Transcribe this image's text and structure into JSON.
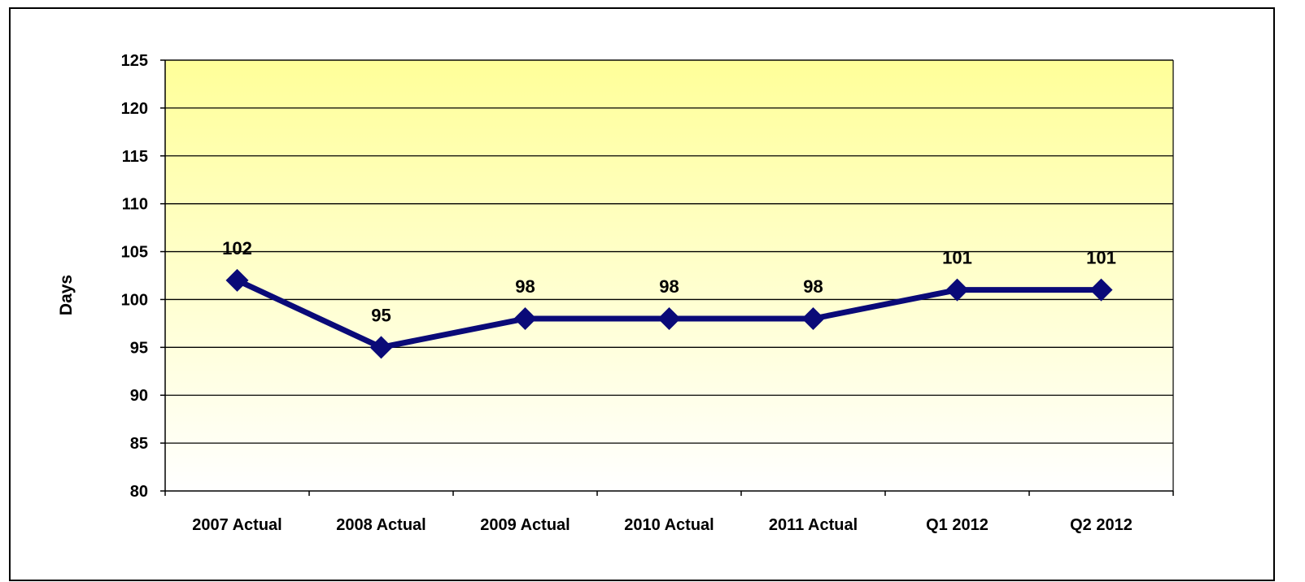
{
  "chart_data": {
    "type": "line",
    "title": "",
    "xlabel": "",
    "ylabel": "Days",
    "ylim": [
      80,
      125
    ],
    "ytick_step": 5,
    "grid": true,
    "legend": "none",
    "categories": [
      "2007 Actual",
      "2008 Actual",
      "2009 Actual",
      "2010 Actual",
      "2011 Actual",
      "Q1 2012",
      "Q2 2012"
    ],
    "series": [
      {
        "values": [
          102,
          95,
          98,
          98,
          98,
          101,
          101
        ],
        "color": "#0a0a78",
        "marker": "diamond"
      }
    ],
    "data_labels": [
      "102",
      "95",
      "98",
      "98",
      "98",
      "101",
      "101"
    ],
    "plot_background": {
      "top_color": "#ffff99",
      "bottom_color": "#ffffff"
    }
  }
}
